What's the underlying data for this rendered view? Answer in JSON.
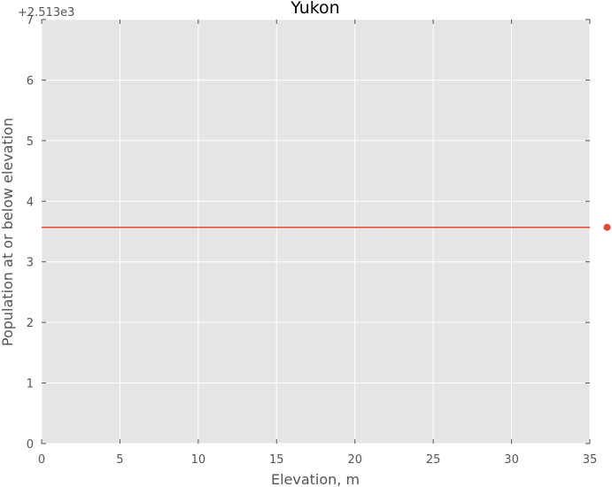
{
  "chart_data": {
    "type": "line",
    "title": "Yukon",
    "xlabel": "Elevation, m",
    "ylabel": "Population at or below elevation",
    "y_offset_label": "+2.513e3",
    "xlim": [
      0,
      35
    ],
    "ylim": [
      0,
      7
    ],
    "x_ticks": [
      0,
      5,
      10,
      15,
      20,
      25,
      30,
      35
    ],
    "x_tick_labels": [
      "0",
      "5",
      "10",
      "15",
      "20",
      "25",
      "30",
      "35"
    ],
    "y_ticks": [
      0,
      1,
      2,
      3,
      4,
      5,
      6,
      7
    ],
    "y_tick_labels": [
      "0",
      "1",
      "2",
      "3",
      "4",
      "5",
      "6",
      "7"
    ],
    "grid": true,
    "series": [
      {
        "line": {
          "x": [
            0,
            35
          ],
          "y": [
            3.57,
            3.57
          ]
        },
        "color": "#e24a33"
      }
    ],
    "marker_point": {
      "x": 36.1,
      "y": 3.57,
      "color": "#e24a33"
    },
    "background_color": "#e5e5e5",
    "grid_color": "#ffffff"
  }
}
